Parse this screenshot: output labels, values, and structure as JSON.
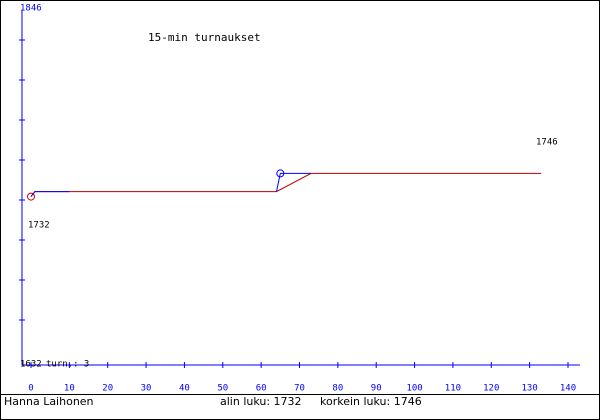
{
  "chart_data": {
    "type": "line",
    "title": "15-min turnaukset",
    "xlim": [
      0,
      140
    ],
    "xticks": [
      0,
      10,
      20,
      30,
      40,
      50,
      60,
      70,
      80,
      90,
      100,
      110,
      120,
      130,
      140
    ],
    "ylim": [
      1632,
      1846
    ],
    "games_label": "turn.: 3",
    "series": [
      {
        "color": "#c00000",
        "x": [
          0,
          1,
          10,
          64,
          73,
          133
        ],
        "values": [
          1732,
          1735,
          1735,
          1735,
          1746,
          1746
        ]
      },
      {
        "color": "#0000ff",
        "x": [
          0,
          1,
          10,
          null,
          64,
          65,
          73
        ],
        "values": [
          1732,
          1735,
          1735,
          null,
          1735,
          1746,
          1746
        ]
      }
    ],
    "markers": [
      {
        "x": 0,
        "y": 1732,
        "color": "#c00000"
      },
      {
        "x": 65,
        "y": 1746,
        "color": "#0000ff"
      }
    ],
    "annotations": [
      "1732",
      "1746"
    ],
    "footer": {
      "player": "Hanna Laihonen",
      "lowest": "alin luku: 1732",
      "highest": "korkein luku: 1746"
    }
  }
}
